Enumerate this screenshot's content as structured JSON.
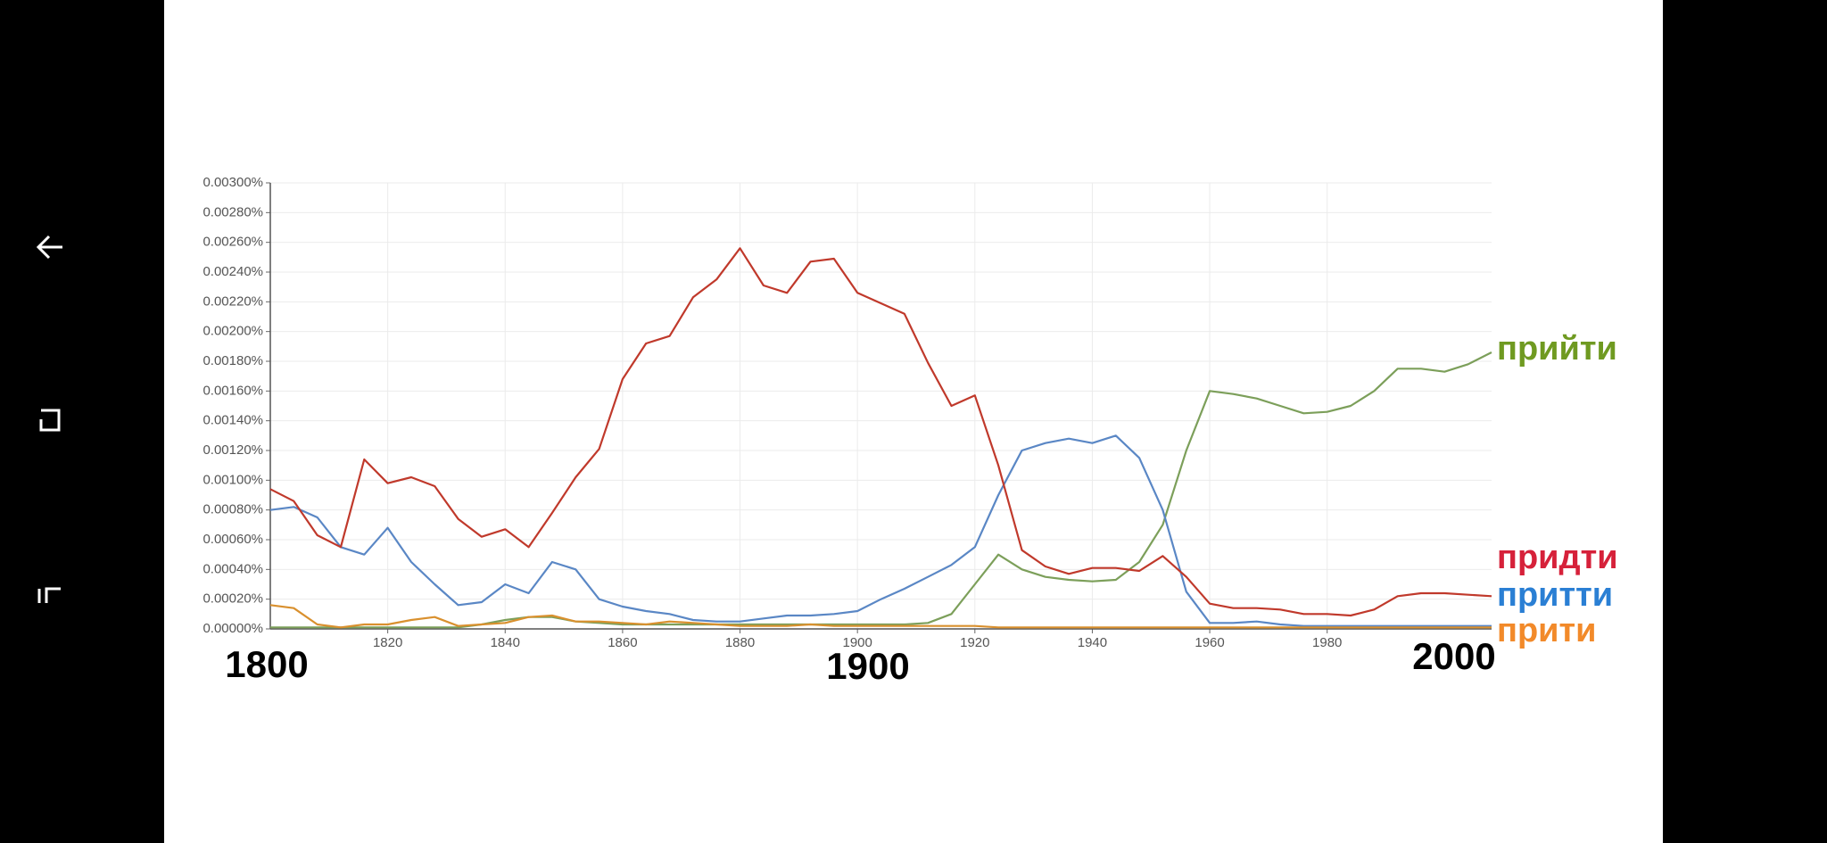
{
  "chart_data": {
    "type": "line",
    "x": [
      1800,
      1804,
      1808,
      1812,
      1816,
      1820,
      1824,
      1828,
      1832,
      1836,
      1840,
      1844,
      1848,
      1852,
      1856,
      1860,
      1864,
      1868,
      1872,
      1876,
      1880,
      1884,
      1888,
      1892,
      1896,
      1900,
      1904,
      1908,
      1912,
      1916,
      1920,
      1924,
      1928,
      1932,
      1936,
      1940,
      1944,
      1948,
      1952,
      1956,
      1960,
      1964,
      1968,
      1972,
      1976,
      1980,
      1984,
      1988,
      1992,
      1996,
      2000,
      2004,
      2008
    ],
    "xlim": [
      1800,
      2008
    ],
    "xticks": [
      1820,
      1840,
      1860,
      1880,
      1900,
      1920,
      1940,
      1960,
      1980
    ],
    "ylim": [
      0,
      0.003
    ],
    "yticks": [
      {
        "value": 0,
        "label": "0.00000%"
      },
      {
        "value": 0.0002,
        "label": "0.00020%"
      },
      {
        "value": 0.0004,
        "label": "0.00040%"
      },
      {
        "value": 0.0006,
        "label": "0.00060%"
      },
      {
        "value": 0.0008,
        "label": "0.00080%"
      },
      {
        "value": 0.001,
        "label": "0.00100%"
      },
      {
        "value": 0.0012,
        "label": "0.00120%"
      },
      {
        "value": 0.0014,
        "label": "0.00140%"
      },
      {
        "value": 0.0016,
        "label": "0.00160%"
      },
      {
        "value": 0.0018,
        "label": "0.00180%"
      },
      {
        "value": 0.002,
        "label": "0.00200%"
      },
      {
        "value": 0.0022,
        "label": "0.00220%"
      },
      {
        "value": 0.0024,
        "label": "0.00240%"
      },
      {
        "value": 0.0026,
        "label": "0.00260%"
      },
      {
        "value": 0.0028,
        "label": "0.00280%"
      },
      {
        "value": 0.003,
        "label": "0.00300%"
      }
    ],
    "grid": true,
    "annotations": [
      "1800",
      "1900",
      "2000"
    ],
    "series": [
      {
        "name": "прийти",
        "color": "#7c9f5a",
        "label_color": "#6f9a21",
        "values": [
          1e-05,
          1e-05,
          1e-05,
          1e-05,
          1e-05,
          1e-05,
          1e-05,
          1e-05,
          1e-05,
          3e-05,
          6e-05,
          8e-05,
          8e-05,
          5e-05,
          4e-05,
          3e-05,
          3e-05,
          3e-05,
          3e-05,
          3e-05,
          3e-05,
          3e-05,
          3e-05,
          3e-05,
          3e-05,
          3e-05,
          3e-05,
          3e-05,
          4e-05,
          0.0001,
          0.0003,
          0.0005,
          0.0004,
          0.00035,
          0.00033,
          0.00032,
          0.00033,
          0.00045,
          0.0007,
          0.0012,
          0.0016,
          0.00158,
          0.00155,
          0.0015,
          0.00145,
          0.00146,
          0.0015,
          0.0016,
          0.00175,
          0.00175,
          0.00173,
          0.00178,
          0.00186
        ]
      },
      {
        "name": "притти",
        "color": "#5a87c5",
        "label_color": "#2a7fd4",
        "values": [
          0.0008,
          0.00082,
          0.00075,
          0.00055,
          0.0005,
          0.00068,
          0.00045,
          0.0003,
          0.00016,
          0.00018,
          0.0003,
          0.00024,
          0.00045,
          0.0004,
          0.0002,
          0.00015,
          0.00012,
          0.0001,
          6e-05,
          5e-05,
          5e-05,
          7e-05,
          9e-05,
          9e-05,
          0.0001,
          0.00012,
          0.0002,
          0.00027,
          0.00035,
          0.00043,
          0.00055,
          0.0009,
          0.0012,
          0.00125,
          0.00128,
          0.00125,
          0.0013,
          0.00115,
          0.0008,
          0.00025,
          4e-05,
          4e-05,
          5e-05,
          3e-05,
          2e-05,
          2e-05,
          2e-05,
          2e-05,
          2e-05,
          2e-05,
          2e-05,
          2e-05,
          2e-05
        ]
      },
      {
        "name": "прити",
        "color": "#d9902e",
        "label_color": "#f28a2a",
        "values": [
          0.00016,
          0.00014,
          3e-05,
          1e-05,
          3e-05,
          3e-05,
          6e-05,
          8e-05,
          2e-05,
          3e-05,
          4e-05,
          8e-05,
          9e-05,
          5e-05,
          5e-05,
          4e-05,
          3e-05,
          5e-05,
          4e-05,
          3e-05,
          2e-05,
          2e-05,
          2e-05,
          3e-05,
          2e-05,
          2e-05,
          2e-05,
          2e-05,
          2e-05,
          2e-05,
          2e-05,
          1e-05,
          1e-05,
          1e-05,
          1e-05,
          1e-05,
          1e-05,
          1e-05,
          1e-05,
          1e-05,
          1e-05,
          1e-05,
          1e-05,
          1e-05,
          1e-05,
          1e-05,
          1e-05,
          1e-05,
          1e-05,
          1e-05,
          1e-05,
          1e-05,
          1e-05
        ]
      },
      {
        "name": "придти",
        "color": "#c0392b",
        "label_color": "#d6213a",
        "values": [
          0.00094,
          0.00086,
          0.00063,
          0.00055,
          0.00114,
          0.00098,
          0.00102,
          0.00096,
          0.00074,
          0.00062,
          0.00067,
          0.00055,
          0.00078,
          0.00102,
          0.00121,
          0.00168,
          0.00192,
          0.00197,
          0.00223,
          0.00235,
          0.00256,
          0.00231,
          0.00226,
          0.00247,
          0.00249,
          0.00226,
          0.00219,
          0.00212,
          0.00179,
          0.0015,
          0.00157,
          0.0011,
          0.00053,
          0.00042,
          0.00037,
          0.00041,
          0.00041,
          0.00039,
          0.00049,
          0.00035,
          0.00017,
          0.00014,
          0.00014,
          0.00013,
          0.0001,
          0.0001,
          9e-05,
          0.00013,
          0.00022,
          0.00024,
          0.00024,
          0.00023,
          0.00022
        ]
      }
    ]
  }
}
